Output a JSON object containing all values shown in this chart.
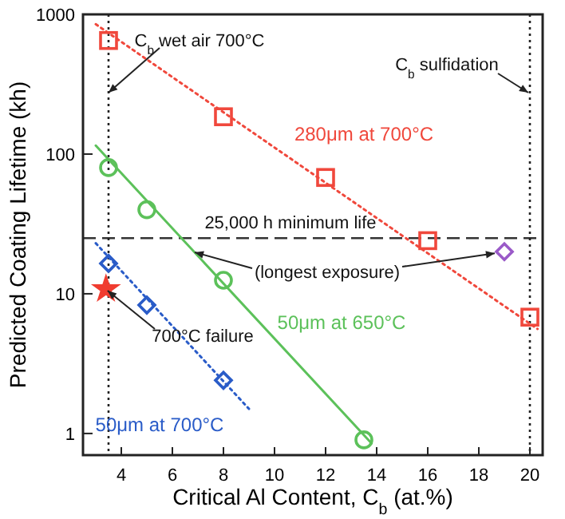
{
  "chart_data": {
    "type": "scatter",
    "xlabel": "Critical Al Content, C$_{b}$ (at.%)",
    "ylabel": "Predicted Coating Lifetime (kh)",
    "log": "y",
    "xlim": [
      2.5,
      20.5
    ],
    "xticks": [
      4,
      6,
      8,
      10,
      12,
      14,
      16,
      18,
      20
    ],
    "ylim": [
      0.7,
      1000
    ],
    "yticks": [
      1,
      10,
      100,
      1000
    ],
    "grid": false,
    "series": [
      {
        "type": "line",
        "color": "#f0483c",
        "line_style": "dotted",
        "marker": "none",
        "x": [
          3,
          20.3
        ],
        "values": [
          850,
          5.6
        ]
      },
      {
        "type": "line",
        "color": "#5cc15a",
        "line_style": "solid",
        "marker": "none",
        "x": [
          3,
          13.8
        ],
        "values": [
          115,
          0.85
        ]
      },
      {
        "type": "line",
        "color": "#2a5cc8",
        "line_style": "dotted",
        "marker": "none",
        "x": [
          3,
          9
        ],
        "values": [
          23,
          1.5
        ]
      },
      {
        "name": "280μm at 700°C",
        "color": "#f0483c",
        "marker": "square",
        "x": [
          3.5,
          8,
          12,
          16,
          20
        ],
        "values": [
          650,
          185,
          68,
          24,
          6.8
        ]
      },
      {
        "name": "50μm at 650°C",
        "color": "#5cc15a",
        "marker": "circle",
        "x": [
          3.5,
          5,
          8,
          13.5
        ],
        "values": [
          80,
          40,
          12.5,
          0.9
        ]
      },
      {
        "name": "50μm at 700°C",
        "color": "#2a5cc8",
        "marker": "diamond",
        "x": [
          3.5,
          5,
          8
        ],
        "values": [
          16.5,
          8.3,
          2.4
        ]
      },
      {
        "color": "#9a5ac8",
        "marker": "diamond",
        "x": [
          19
        ],
        "values": [
          20
        ]
      },
      {
        "color": "#f03c30",
        "marker": "star",
        "x": [
          3.4
        ],
        "values": [
          10.8
        ]
      }
    ],
    "ref_lines": [
      {
        "axis": "y",
        "value": 25,
        "label": "25,000 h minimum life",
        "line_style": "dashed",
        "color": "#333333"
      },
      {
        "axis": "x",
        "value": 3.5,
        "label": "C$_{b}$ wet air 700°C",
        "line_style": "dotted",
        "color": "#222222"
      },
      {
        "axis": "x",
        "value": 20,
        "label": "C$_{b}$ sulfidation",
        "line_style": "dotted",
        "color": "#222222"
      }
    ],
    "annotations": [
      {
        "text": "(longest exposure)",
        "x": 19,
        "y": 20
      },
      {
        "text": "700°C failure",
        "x": 3.4,
        "y": 10.8
      }
    ]
  }
}
